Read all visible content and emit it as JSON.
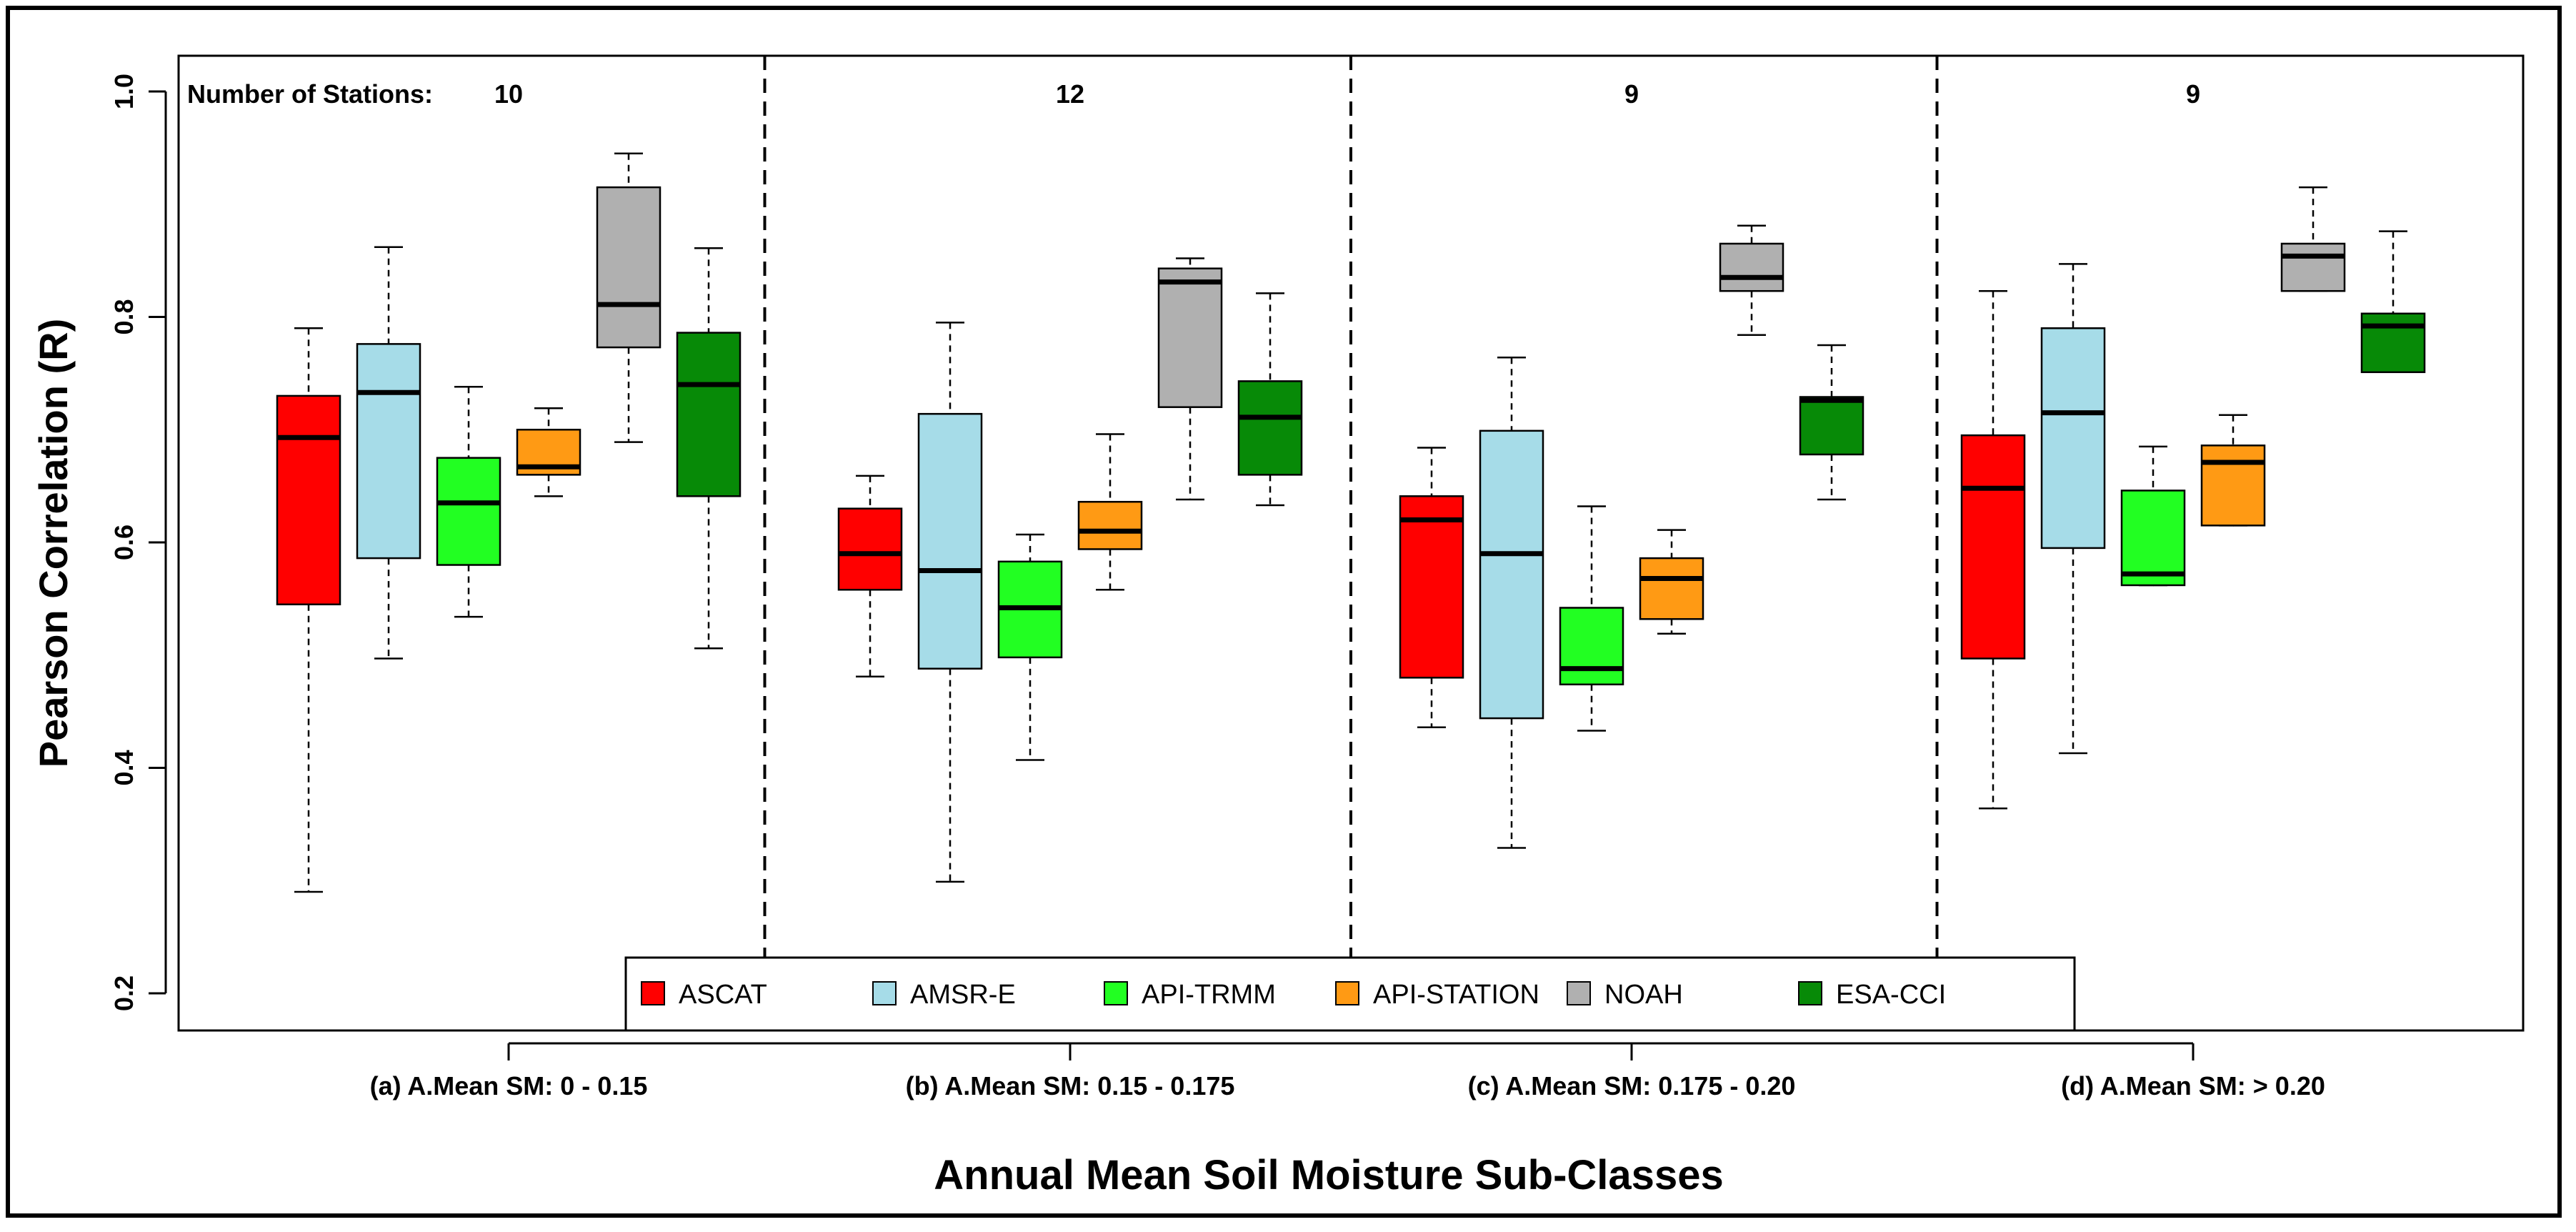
{
  "chart_data": {
    "type": "boxplot",
    "ylabel": "Pearson Correlation (R)",
    "xlabel": "Annual Mean Soil Moisture Sub-Classes",
    "ylim": [
      0.18,
      1.03
    ],
    "yticks": [
      "0.2",
      "0.4",
      "0.6",
      "0.8",
      "1.0"
    ],
    "stations_label": "Number of Stations:",
    "series": [
      {
        "name": "ASCAT",
        "color": "#ff0000"
      },
      {
        "name": "AMSR-E",
        "color": "#a6dce8"
      },
      {
        "name": "API-TRMM",
        "color": "#22ff22"
      },
      {
        "name": "API-STATION",
        "color": "#ff9a14"
      },
      {
        "name": "NOAH",
        "color": "#b0b0b0"
      },
      {
        "name": "ESA-CCI",
        "color": "#078a07"
      }
    ],
    "groups": [
      {
        "label": "(a) A.Mean SM: 0 - 0.15",
        "stations": "10",
        "boxes": [
          {
            "min": 0.29,
            "q1": 0.545,
            "median": 0.693,
            "q3": 0.73,
            "max": 0.79
          },
          {
            "min": 0.497,
            "q1": 0.586,
            "median": 0.733,
            "q3": 0.776,
            "max": 0.862
          },
          {
            "min": 0.534,
            "q1": 0.58,
            "median": 0.635,
            "q3": 0.675,
            "max": 0.738
          },
          {
            "min": 0.641,
            "q1": 0.66,
            "median": 0.667,
            "q3": 0.7,
            "max": 0.719
          },
          {
            "min": 0.689,
            "q1": 0.773,
            "median": 0.811,
            "q3": 0.915,
            "max": 0.945
          },
          {
            "min": 0.506,
            "q1": 0.641,
            "median": 0.74,
            "q3": 0.786,
            "max": 0.861
          }
        ]
      },
      {
        "label": "(b) A.Mean SM: 0.15 - 0.175",
        "stations": "12",
        "boxes": [
          {
            "min": 0.481,
            "q1": 0.558,
            "median": 0.59,
            "q3": 0.63,
            "max": 0.659
          },
          {
            "min": 0.299,
            "q1": 0.488,
            "median": 0.575,
            "q3": 0.714,
            "max": 0.795
          },
          {
            "min": 0.407,
            "q1": 0.498,
            "median": 0.542,
            "q3": 0.583,
            "max": 0.607
          },
          {
            "min": 0.558,
            "q1": 0.594,
            "median": 0.61,
            "q3": 0.636,
            "max": 0.696
          },
          {
            "min": 0.638,
            "q1": 0.72,
            "median": 0.831,
            "q3": 0.843,
            "max": 0.852
          },
          {
            "min": 0.633,
            "q1": 0.66,
            "median": 0.711,
            "q3": 0.743,
            "max": 0.821
          }
        ]
      },
      {
        "label": "(c) A.Mean SM: 0.175 - 0.20",
        "stations": "9",
        "boxes": [
          {
            "min": 0.436,
            "q1": 0.48,
            "median": 0.62,
            "q3": 0.641,
            "max": 0.684
          },
          {
            "min": 0.329,
            "q1": 0.444,
            "median": 0.59,
            "q3": 0.699,
            "max": 0.764
          },
          {
            "min": 0.433,
            "q1": 0.474,
            "median": 0.488,
            "q3": 0.542,
            "max": 0.632
          },
          {
            "min": 0.519,
            "q1": 0.532,
            "median": 0.568,
            "q3": 0.586,
            "max": 0.611
          },
          {
            "min": 0.784,
            "q1": 0.823,
            "median": 0.835,
            "q3": 0.865,
            "max": 0.881
          },
          {
            "min": 0.638,
            "q1": 0.678,
            "median": 0.726,
            "q3": 0.729,
            "max": 0.775
          }
        ]
      },
      {
        "label": "(d) A.Mean SM: > 0.20",
        "stations": "9",
        "boxes": [
          {
            "min": 0.364,
            "q1": 0.497,
            "median": 0.648,
            "q3": 0.695,
            "max": 0.823
          },
          {
            "min": 0.413,
            "q1": 0.595,
            "median": 0.715,
            "q3": 0.79,
            "max": 0.847
          },
          {
            "min": 0.562,
            "q1": 0.562,
            "median": 0.572,
            "q3": 0.646,
            "max": 0.685
          },
          {
            "min": 0.615,
            "q1": 0.615,
            "median": 0.671,
            "q3": 0.686,
            "max": 0.713
          },
          {
            "min": 0.823,
            "q1": 0.823,
            "median": 0.854,
            "q3": 0.865,
            "max": 0.915
          },
          {
            "min": 0.751,
            "q1": 0.751,
            "median": 0.792,
            "q3": 0.803,
            "max": 0.876
          }
        ]
      }
    ]
  }
}
